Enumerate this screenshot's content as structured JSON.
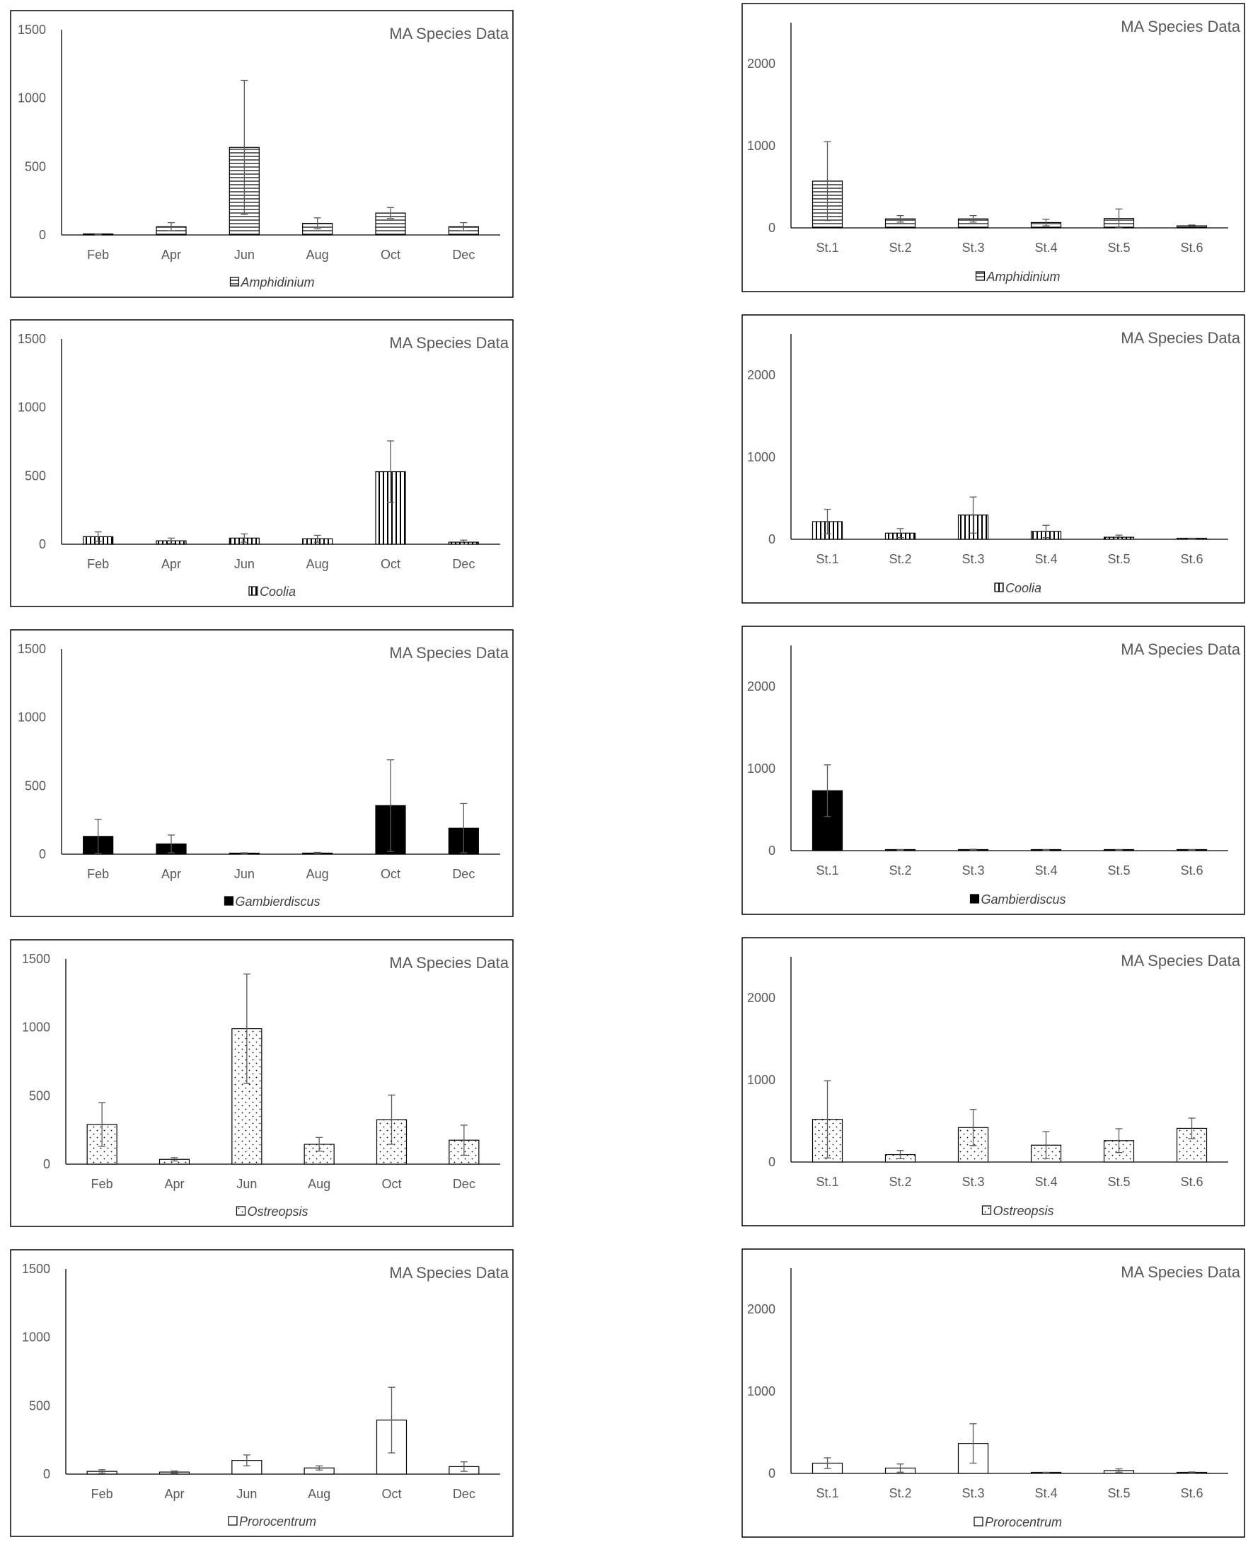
{
  "chart_data": [
    {
      "type": "bar",
      "title": "MA Species Data",
      "legend": "Amphidinium",
      "pattern": "hlines",
      "yticks": [
        0,
        500,
        1000,
        1500
      ],
      "ylim": [
        0,
        1500
      ],
      "categories": [
        "Feb",
        "Apr",
        "Jun",
        "Aug",
        "Oct",
        "Dec"
      ],
      "values": [
        0,
        60,
        640,
        85,
        160,
        60
      ],
      "errors": [
        5,
        30,
        490,
        40,
        40,
        30
      ]
    },
    {
      "type": "bar",
      "title": "MA Species Data",
      "legend": "Amphidinium",
      "pattern": "hlines",
      "yticks": [
        0,
        1000,
        2000
      ],
      "ylim": [
        0,
        2500
      ],
      "categories": [
        "St.1",
        "St.2",
        "St.3",
        "St.4",
        "St.5",
        "St.6"
      ],
      "values": [
        570,
        110,
        110,
        65,
        115,
        25
      ],
      "errors": [
        480,
        40,
        40,
        40,
        115,
        10
      ]
    },
    {
      "type": "bar",
      "title": "MA Species Data",
      "legend": "Coolia",
      "pattern": "vlines",
      "yticks": [
        0,
        500,
        1000,
        1500
      ],
      "ylim": [
        0,
        1500
      ],
      "categories": [
        "Feb",
        "Apr",
        "Jun",
        "Aug",
        "Oct",
        "Dec"
      ],
      "values": [
        55,
        25,
        45,
        40,
        530,
        15
      ],
      "errors": [
        35,
        20,
        30,
        25,
        225,
        15
      ]
    },
    {
      "type": "bar",
      "title": "MA Species Data",
      "legend": "Coolia",
      "pattern": "vlines",
      "yticks": [
        0,
        1000,
        2000
      ],
      "ylim": [
        0,
        2500
      ],
      "categories": [
        "St.1",
        "St.2",
        "St.3",
        "St.4",
        "St.5",
        "St.6"
      ],
      "values": [
        215,
        75,
        295,
        95,
        25,
        5
      ],
      "errors": [
        150,
        55,
        220,
        75,
        25,
        5
      ]
    },
    {
      "type": "bar",
      "title": "MA Species Data",
      "legend": "Gambierdiscus",
      "pattern": "solid",
      "yticks": [
        0,
        500,
        1000,
        1500
      ],
      "ylim": [
        0,
        1500
      ],
      "categories": [
        "Feb",
        "Apr",
        "Jun",
        "Aug",
        "Oct",
        "Dec"
      ],
      "values": [
        130,
        75,
        5,
        8,
        355,
        190
      ],
      "errors": [
        125,
        65,
        5,
        5,
        335,
        180
      ]
    },
    {
      "type": "bar",
      "title": "MA Species Data",
      "legend": "Gambierdiscus",
      "pattern": "solid",
      "yticks": [
        0,
        1000,
        2000
      ],
      "ylim": [
        0,
        2500
      ],
      "categories": [
        "St.1",
        "St.2",
        "St.3",
        "St.4",
        "St.5",
        "St.6"
      ],
      "values": [
        730,
        8,
        12,
        8,
        8,
        8
      ],
      "errors": [
        315,
        5,
        5,
        5,
        5,
        5
      ]
    },
    {
      "type": "bar",
      "title": "MA Species Data",
      "legend": "Ostreopsis",
      "pattern": "dots",
      "yticks": [
        0,
        500,
        1000,
        1500
      ],
      "ylim": [
        0,
        1500
      ],
      "categories": [
        "Feb",
        "Apr",
        "Jun",
        "Aug",
        "Oct",
        "Dec"
      ],
      "values": [
        290,
        35,
        990,
        145,
        325,
        175
      ],
      "errors": [
        160,
        12,
        400,
        50,
        180,
        110
      ]
    },
    {
      "type": "bar",
      "title": "MA Species Data",
      "legend": "Ostreopsis",
      "pattern": "dots",
      "yticks": [
        0,
        1000,
        2000
      ],
      "ylim": [
        0,
        2500
      ],
      "categories": [
        "St.1",
        "St.2",
        "St.3",
        "St.4",
        "St.5",
        "St.6"
      ],
      "values": [
        520,
        90,
        420,
        205,
        260,
        410
      ],
      "errors": [
        470,
        50,
        220,
        165,
        145,
        125
      ]
    },
    {
      "type": "bar",
      "title": "MA Species Data",
      "legend": "Prorocentrum",
      "pattern": "empty",
      "yticks": [
        0,
        500,
        1000,
        1500
      ],
      "ylim": [
        0,
        1500
      ],
      "categories": [
        "Feb",
        "Apr",
        "Jun",
        "Aug",
        "Oct",
        "Dec"
      ],
      "values": [
        20,
        15,
        100,
        45,
        395,
        55
      ],
      "errors": [
        12,
        8,
        40,
        15,
        240,
        35
      ]
    },
    {
      "type": "bar",
      "title": "MA Species Data",
      "legend": "Prorocentrum",
      "pattern": "empty",
      "yticks": [
        0,
        1000,
        2000
      ],
      "ylim": [
        0,
        2500
      ],
      "categories": [
        "St.1",
        "St.2",
        "St.3",
        "St.4",
        "St.5",
        "St.6"
      ],
      "values": [
        125,
        65,
        365,
        8,
        35,
        10
      ],
      "errors": [
        65,
        50,
        240,
        5,
        20,
        8
      ]
    }
  ]
}
